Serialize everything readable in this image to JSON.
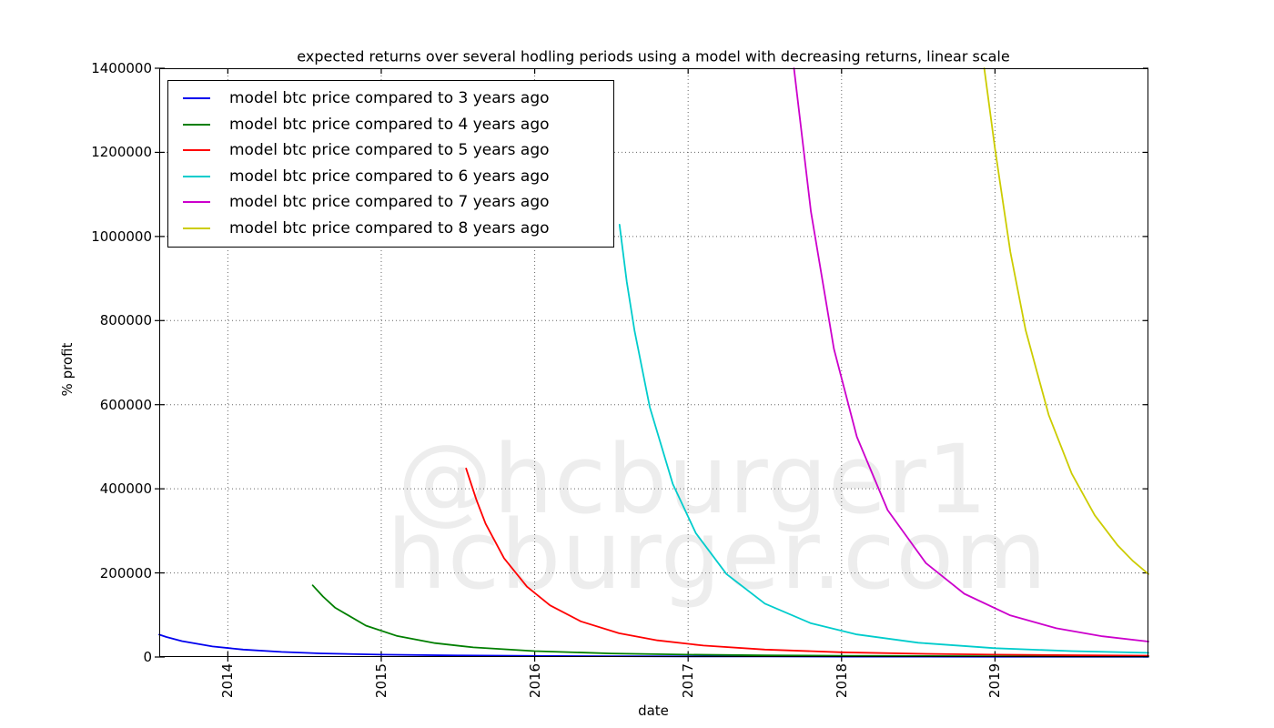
{
  "chart_data": {
    "type": "line",
    "title": "expected returns over several hodling periods using a model with decreasing returns, linear scale",
    "xlabel": "date",
    "ylabel": "% profit",
    "xlim": [
      2013.553,
      2020.0
    ],
    "ylim": [
      0,
      1400000
    ],
    "x_ticks": [
      2014,
      2015,
      2016,
      2017,
      2018,
      2019
    ],
    "y_ticks": [
      0,
      200000,
      400000,
      600000,
      800000,
      1000000,
      1200000,
      1400000
    ],
    "grid": "dotted",
    "legend_loc": "upper left",
    "watermark": [
      "@hcburger1",
      "hcburger.com"
    ],
    "series": [
      {
        "name": "model btc price compared to 3 years ago",
        "color": "#0000ee",
        "points": [
          [
            2013.553,
            53300
          ],
          [
            2013.6,
            47600
          ],
          [
            2013.7,
            37800
          ],
          [
            2013.9,
            25200
          ],
          [
            2014.1,
            17700
          ],
          [
            2014.35,
            12100
          ],
          [
            2014.6,
            8700
          ],
          [
            2015.0,
            5600
          ],
          [
            2015.5,
            3600
          ],
          [
            2016.0,
            2500
          ],
          [
            2016.5,
            1900
          ],
          [
            2017.0,
            1500
          ],
          [
            2017.5,
            1200
          ],
          [
            2018.0,
            970
          ],
          [
            2019.0,
            700
          ],
          [
            2020.0,
            540
          ]
        ]
      },
      {
        "name": "model btc price compared to 4 years ago",
        "color": "#007f00",
        "points": [
          [
            2014.553,
            170500
          ],
          [
            2014.62,
            144000
          ],
          [
            2014.7,
            117100
          ],
          [
            2014.9,
            74700
          ],
          [
            2015.1,
            50500
          ],
          [
            2015.35,
            33100
          ],
          [
            2015.6,
            22900
          ],
          [
            2016.0,
            14000
          ],
          [
            2016.5,
            8500
          ],
          [
            2017.0,
            5600
          ],
          [
            2017.5,
            4000
          ],
          [
            2018.0,
            3000
          ],
          [
            2019.0,
            1900
          ],
          [
            2020.0,
            1300
          ]
        ]
      },
      {
        "name": "model btc price compared to 5 years ago",
        "color": "#ff0000",
        "points": [
          [
            2015.553,
            448400
          ],
          [
            2015.62,
            374000
          ],
          [
            2015.68,
            317200
          ],
          [
            2015.8,
            235100
          ],
          [
            2015.95,
            167300
          ],
          [
            2016.1,
            122900
          ],
          [
            2016.3,
            84900
          ],
          [
            2016.55,
            56500
          ],
          [
            2016.8,
            39500
          ],
          [
            2017.1,
            27200
          ],
          [
            2017.5,
            17700
          ],
          [
            2018.0,
            11300
          ],
          [
            2018.5,
            7800
          ],
          [
            2019.0,
            5600
          ],
          [
            2019.5,
            4300
          ],
          [
            2020.0,
            3300
          ]
        ]
      },
      {
        "name": "model btc price compared to 6 years ago",
        "color": "#00cccc",
        "points": [
          [
            2016.553,
            1028000
          ],
          [
            2016.6,
            893000
          ],
          [
            2016.65,
            777100
          ],
          [
            2016.75,
            594700
          ],
          [
            2016.9,
            411500
          ],
          [
            2017.05,
            294700
          ],
          [
            2017.25,
            197400
          ],
          [
            2017.5,
            127000
          ],
          [
            2017.8,
            80200
          ],
          [
            2018.1,
            53700
          ],
          [
            2018.5,
            34000
          ],
          [
            2019.0,
            21000
          ],
          [
            2019.5,
            14000
          ],
          [
            2020.0,
            9900
          ]
        ]
      },
      {
        "name": "model btc price compared to 7 years ago",
        "color": "#cc00cc",
        "points": [
          [
            2017.69,
            1400000
          ],
          [
            2017.8,
            1059700
          ],
          [
            2017.95,
            732600
          ],
          [
            2018.1,
            523700
          ],
          [
            2018.3,
            349400
          ],
          [
            2018.55,
            223400
          ],
          [
            2018.8,
            150400
          ],
          [
            2019.1,
            98900
          ],
          [
            2019.4,
            68400
          ],
          [
            2019.7,
            49300
          ],
          [
            2020.0,
            36700
          ]
        ]
      },
      {
        "name": "model btc price compared to 8 years ago",
        "color": "#cccc00",
        "points": [
          [
            2018.93,
            1400000
          ],
          [
            2019.0,
            1208700
          ],
          [
            2019.1,
            962900
          ],
          [
            2019.2,
            777100
          ],
          [
            2019.35,
            575900
          ],
          [
            2019.5,
            436200
          ],
          [
            2019.65,
            337200
          ],
          [
            2019.8,
            265200
          ],
          [
            2019.9,
            228000
          ],
          [
            2020.0,
            197400
          ]
        ]
      }
    ]
  }
}
